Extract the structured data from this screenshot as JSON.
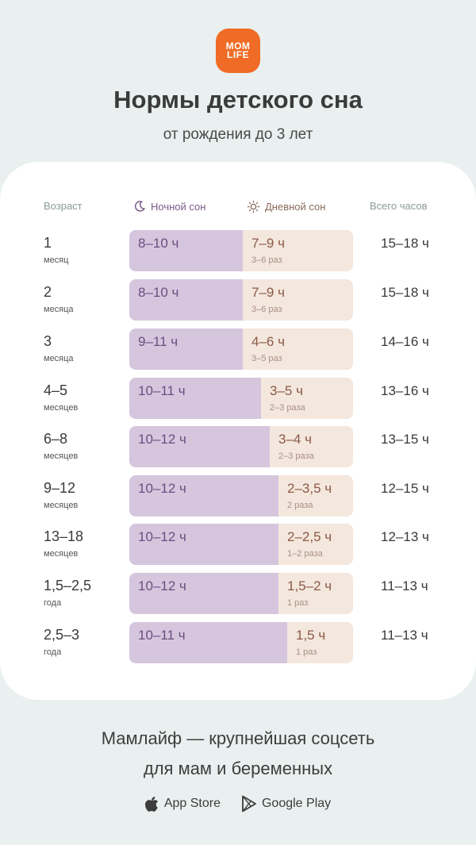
{
  "brand": {
    "line1": "MOM",
    "line2": "LIFE"
  },
  "title": "Нормы детского сна",
  "subtitle": "от рождения до 3 лет",
  "headers": {
    "age": "Возраст",
    "night": "Ночной сон",
    "day": "Дневной сон",
    "total": "Всего часов"
  },
  "rows": [
    {
      "age": "1",
      "unit": "месяц",
      "night": "8–10 ч",
      "day": "7–9 ч",
      "times": "3–6 раз",
      "total": "15–18 ч"
    },
    {
      "age": "2",
      "unit": "месяца",
      "night": "8–10 ч",
      "day": "7–9 ч",
      "times": "3–6 раз",
      "total": "15–18 ч"
    },
    {
      "age": "3",
      "unit": "месяца",
      "night": "9–11 ч",
      "day": "4–6 ч",
      "times": "3–5 раз",
      "total": "14–16 ч"
    },
    {
      "age": "4–5",
      "unit": "месяцев",
      "night": "10–11 ч",
      "day": "3–5 ч",
      "times": "2–3 раза",
      "total": "13–16 ч"
    },
    {
      "age": "6–8",
      "unit": "месяцев",
      "night": "10–12 ч",
      "day": "3–4 ч",
      "times": "2–3 раза",
      "total": "13–15 ч"
    },
    {
      "age": "9–12",
      "unit": "месяцев",
      "night": "10–12 ч",
      "day": "2–3,5 ч",
      "times": "2 раза",
      "total": "12–15 ч"
    },
    {
      "age": "13–18",
      "unit": "месяцев",
      "night": "10–12 ч",
      "day": "2–2,5 ч",
      "times": "1–2 раза",
      "total": "12–13 ч"
    },
    {
      "age": "1,5–2,5",
      "unit": "года",
      "night": "10–12 ч",
      "day": "1,5–2 ч",
      "times": "1 раз",
      "total": "11–13 ч"
    },
    {
      "age": "2,5–3",
      "unit": "года",
      "night": "10–11 ч",
      "day": "1,5 ч",
      "times": "1 раз",
      "total": "11–13 ч"
    }
  ],
  "footer": {
    "line1": "Мамлайф — крупнейшая соцсеть",
    "line2": "для мам и беременных",
    "app_store": "App Store",
    "google_play": "Google Play"
  },
  "colors": {
    "background": "#e9f0ef",
    "brand": "#f06b25",
    "night_bar": "#d5c6de",
    "day_bar": "#f4e7dd"
  },
  "icons": {
    "night": "moon-icon",
    "day": "sun-icon",
    "app_store": "apple-icon",
    "google_play": "play-icon"
  }
}
